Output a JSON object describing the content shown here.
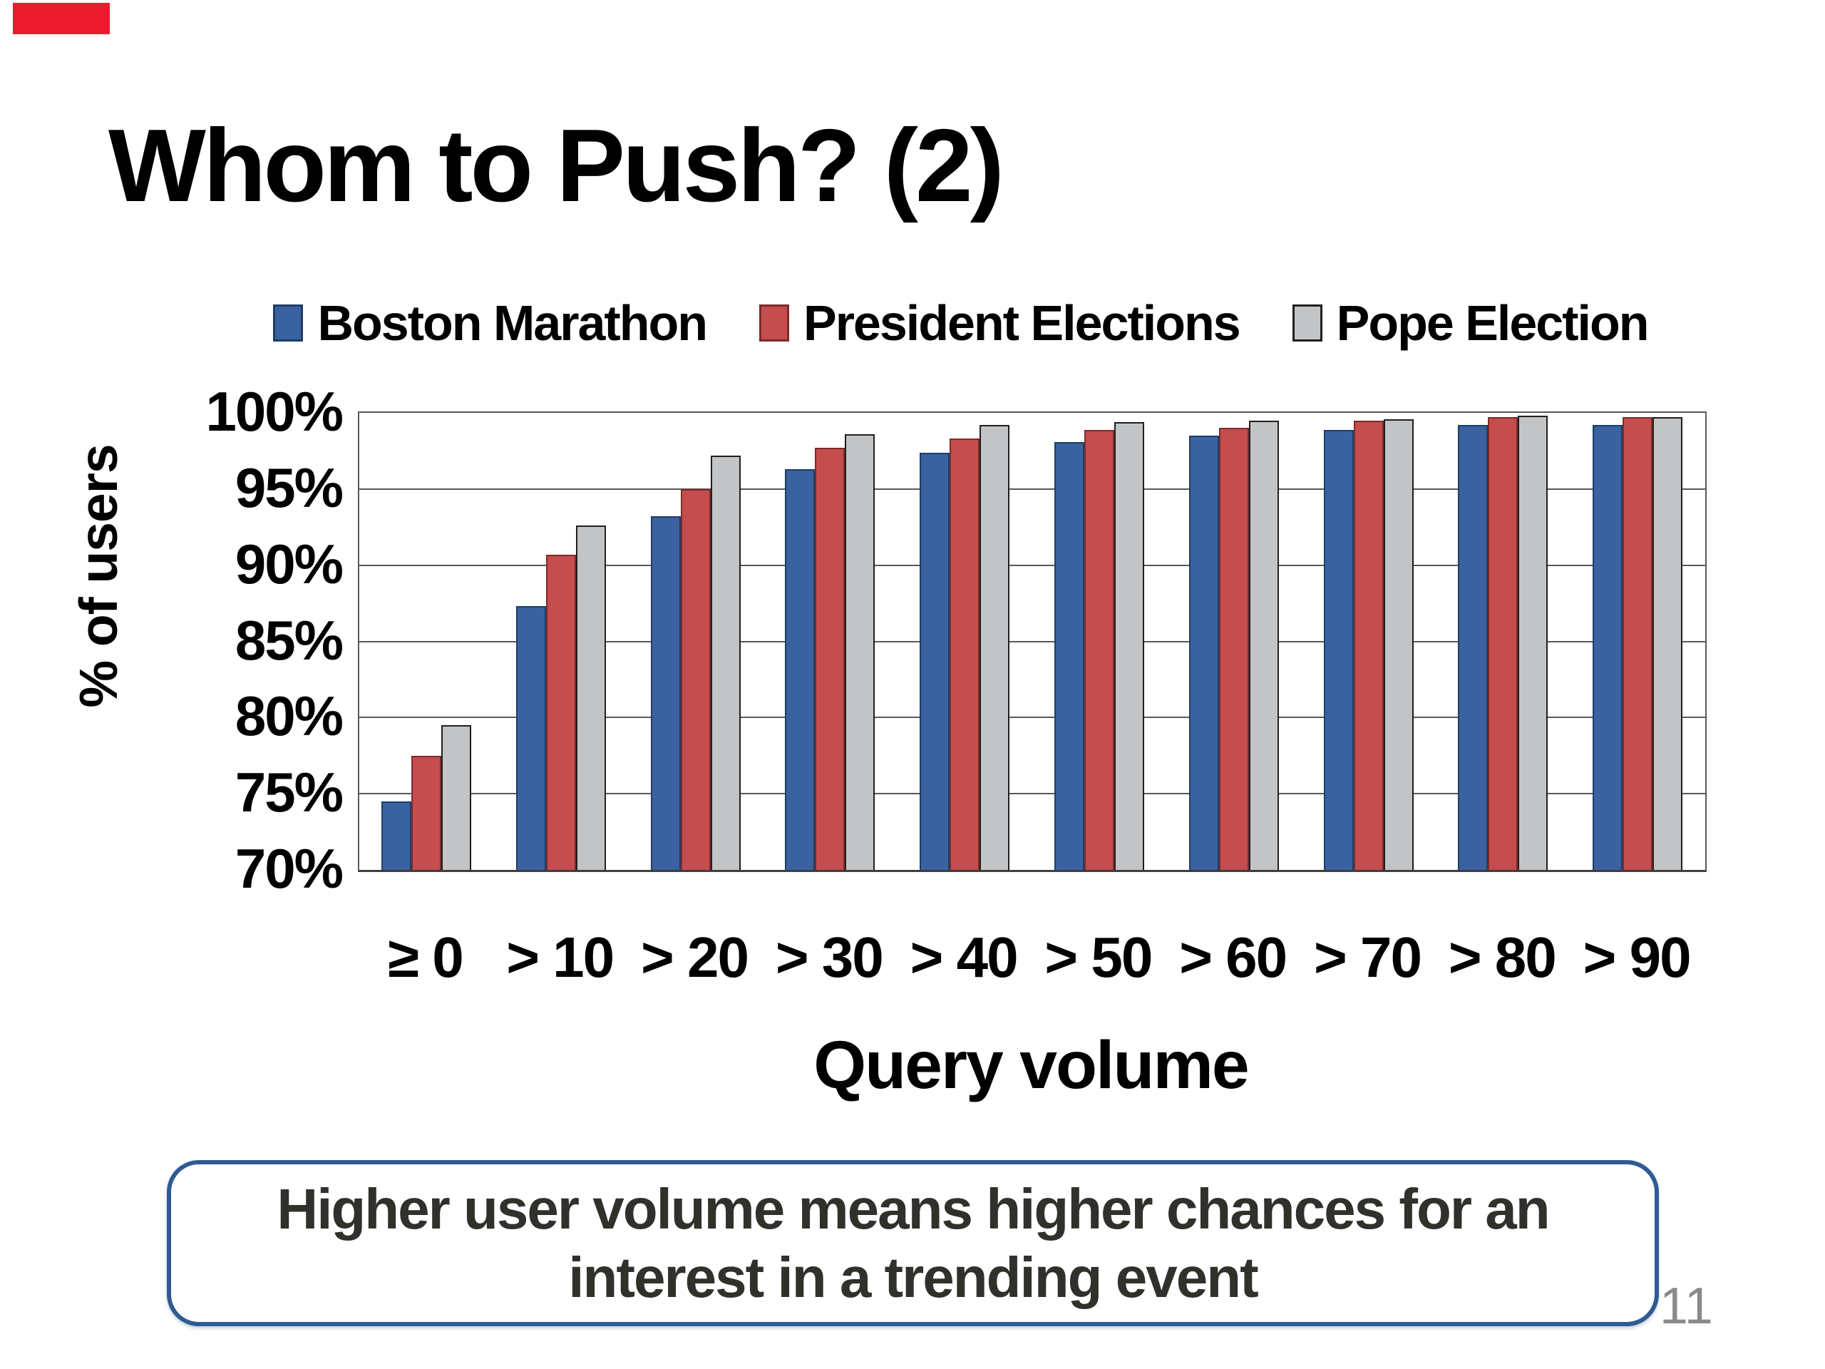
{
  "slide": {
    "title": "Whom to Push? (2)",
    "page_number": "11",
    "accent_bar_color": "#ED1B2E",
    "callout": {
      "text_line1": "Higher user volume means higher chances for an",
      "text_line2": "interest in a trending event",
      "border_color": "#2F5B93"
    }
  },
  "chart_data": {
    "type": "bar",
    "title": "",
    "categories": [
      "≥ 0",
      "> 10",
      "> 20",
      "> 30",
      "> 40",
      "> 50",
      "> 60",
      "> 70",
      "> 80",
      "> 90"
    ],
    "series": [
      {
        "name": "Boston Marathon",
        "color": "#3A62A0",
        "border_color": "#1E3E66",
        "values": [
          74.5,
          87.3,
          93.2,
          96.3,
          97.4,
          98.1,
          98.5,
          98.9,
          99.2,
          99.2
        ]
      },
      {
        "name": "President Elections",
        "color": "#C54D4D",
        "border_color": "#7D2B2B",
        "values": [
          77.5,
          90.7,
          95.0,
          97.7,
          98.3,
          98.9,
          99.0,
          99.5,
          99.7,
          99.7
        ]
      },
      {
        "name": "Pope Election",
        "color": "#C3C4C6",
        "border_color": "#1F1F1F",
        "values": [
          79.5,
          92.6,
          97.2,
          98.6,
          99.2,
          99.4,
          99.5,
          99.6,
          99.8,
          99.7
        ]
      }
    ],
    "xlabel": "Query volume",
    "ylabel": "% of users",
    "ylim": [
      70,
      100
    ],
    "ytick_step": 5,
    "ytick_labels": [
      "100%",
      "95%",
      "90%",
      "85%",
      "80%",
      "75%",
      "70%"
    ],
    "grid": true,
    "legend_position": "top",
    "gridline_color": "#595959"
  }
}
